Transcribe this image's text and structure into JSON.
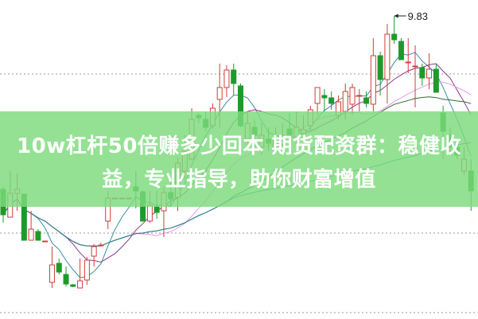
{
  "chart_data": {
    "type": "candlestick",
    "title": "",
    "xlabel": "",
    "ylabel": "",
    "ylim": [
      6.05,
      10.03
    ],
    "grid": true,
    "gridlines": [
      9.1,
      7.1,
      6.1
    ],
    "up_color": "#d23c3c",
    "down_color": "#1f9a2a",
    "annotation": {
      "label": "9.83",
      "value": 9.83,
      "index": 56
    },
    "moving_averages": [
      {
        "period": 5,
        "color": "#3a8fa0"
      },
      {
        "period": 10,
        "color": "#8a3a8a"
      },
      {
        "period": 20,
        "color": "#e49ae4"
      },
      {
        "period": 30,
        "color": "#2f6a2f"
      },
      {
        "period": 60,
        "color": "#2a7f9a"
      }
    ],
    "ohlc": [
      [
        7.65,
        7.33,
        7.68,
        7.23
      ],
      [
        7.3,
        7.6,
        7.88,
        7.3
      ],
      [
        7.6,
        7.65,
        7.85,
        7.38
      ],
      [
        7.59,
        7.01,
        7.59,
        7.01
      ],
      [
        7.01,
        7.15,
        7.38,
        7.01
      ],
      [
        7.12,
        7.01,
        7.15,
        7.01
      ],
      [
        7.0,
        7.0,
        7.0,
        7.0
      ],
      [
        6.48,
        6.7,
        6.93,
        6.41
      ],
      [
        6.72,
        6.61,
        6.78,
        6.58
      ],
      [
        6.58,
        6.46,
        6.68,
        6.43
      ],
      [
        6.45,
        6.43,
        6.46,
        6.42
      ],
      [
        6.41,
        6.5,
        6.78,
        6.41
      ],
      [
        6.51,
        6.76,
        6.8,
        6.45
      ],
      [
        6.81,
        6.93,
        6.96,
        6.68
      ],
      [
        6.95,
        6.95,
        6.98,
        6.95
      ],
      [
        7.25,
        7.54,
        7.63,
        7.15
      ],
      [
        7.54,
        7.54,
        7.54,
        7.54
      ],
      [
        7.54,
        7.54,
        7.54,
        7.54
      ],
      [
        7.54,
        7.54,
        7.54,
        7.54
      ],
      [
        7.68,
        7.63,
        7.88,
        7.41
      ],
      [
        7.62,
        7.25,
        7.63,
        7.25
      ],
      [
        7.25,
        7.45,
        7.63,
        7.23
      ],
      [
        7.43,
        7.36,
        7.63,
        7.28
      ],
      [
        7.38,
        7.61,
        7.68,
        7.05
      ],
      [
        7.61,
        7.53,
        7.73,
        7.43
      ],
      [
        7.55,
        7.98,
        8.05,
        7.38
      ],
      [
        7.88,
        8.13,
        8.33,
        7.78
      ],
      [
        8.03,
        8.53,
        8.67,
        8.03
      ],
      [
        8.58,
        8.55,
        8.61,
        8.48
      ],
      [
        8.53,
        8.43,
        8.63,
        8.38
      ],
      [
        8.45,
        8.67,
        8.73,
        8.41
      ],
      [
        8.78,
        8.93,
        9.23,
        8.43
      ],
      [
        8.93,
        9.15,
        9.21,
        8.81
      ],
      [
        9.15,
        8.98,
        9.23,
        8.83
      ],
      [
        8.95,
        8.45,
        8.98,
        8.43
      ],
      [
        8.28,
        8.48,
        8.63,
        8.23
      ],
      [
        8.43,
        8.33,
        8.53,
        8.18
      ],
      [
        8.18,
        8.33,
        8.48,
        8.08
      ],
      [
        8.28,
        8.23,
        8.43,
        8.13
      ],
      [
        8.18,
        8.28,
        8.43,
        8.13
      ],
      [
        8.21,
        8.33,
        8.48,
        8.13
      ],
      [
        8.41,
        8.33,
        8.61,
        8.23
      ],
      [
        8.31,
        8.43,
        8.63,
        8.18
      ],
      [
        8.35,
        8.4,
        8.58,
        8.25
      ],
      [
        8.45,
        8.65,
        8.7,
        8.38
      ],
      [
        8.73,
        8.93,
        8.93,
        8.58
      ],
      [
        8.83,
        8.8,
        8.91,
        8.63
      ],
      [
        8.8,
        8.73,
        8.88,
        8.65
      ],
      [
        8.58,
        8.75,
        8.83,
        8.53
      ],
      [
        8.63,
        8.88,
        8.98,
        8.53
      ],
      [
        8.72,
        8.93,
        8.98,
        8.58
      ],
      [
        8.83,
        8.83,
        8.91,
        8.63
      ],
      [
        8.8,
        8.73,
        8.88,
        8.68
      ],
      [
        8.72,
        9.33,
        9.55,
        8.63
      ],
      [
        9.33,
        9.03,
        9.38,
        8.83
      ],
      [
        9.03,
        9.6,
        9.73,
        8.73
      ],
      [
        9.6,
        9.53,
        9.83,
        9.48
      ],
      [
        9.51,
        9.28,
        9.55,
        9.28
      ],
      [
        9.25,
        9.25,
        9.55,
        9.11
      ],
      [
        9.2,
        9.2,
        9.46,
        8.68
      ],
      [
        9.18,
        9.05,
        9.23,
        8.95
      ],
      [
        9.05,
        9.16,
        9.36,
        8.91
      ],
      [
        9.16,
        8.87,
        9.23,
        8.87
      ],
      [
        8.61,
        8.38,
        8.7,
        8.03
      ],
      [
        8.33,
        8.18,
        8.43,
        8.08
      ],
      [
        8.18,
        8.08,
        8.28,
        8.03
      ],
      [
        7.88,
        8.03,
        8.18,
        7.83
      ],
      [
        7.88,
        7.63,
        8.03,
        7.38
      ]
    ]
  },
  "banner": {
    "line1": "10w杠杆50倍赚多少回本 期货配资群：稳健收",
    "line2": "益，专业指导，助你财富增值"
  }
}
